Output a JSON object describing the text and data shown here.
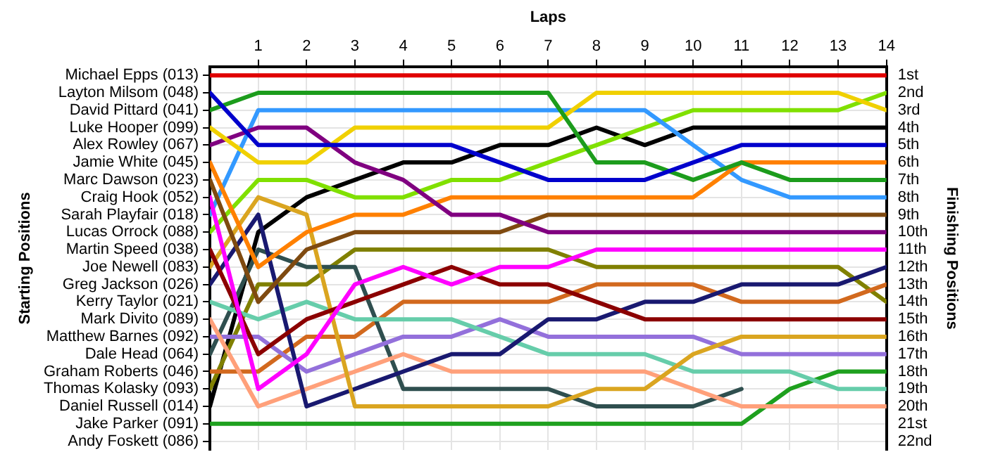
{
  "chart_data": {
    "type": "line",
    "xlabel": "Laps",
    "annotations": [
      "Starting Positions"
    ],
    "y2label": "Finishing Positions",
    "x": [
      0,
      1,
      2,
      3,
      4,
      5,
      6,
      7,
      8,
      9,
      10,
      11,
      12,
      13,
      14
    ],
    "xlim": [
      0,
      14
    ],
    "xticks": [
      1,
      2,
      3,
      4,
      5,
      6,
      7,
      8,
      9,
      10,
      11,
      12,
      13,
      14
    ],
    "y_categories": [
      "Michael Epps (013)",
      "Layton Milsom (048)",
      "David Pittard (041)",
      "Luke Hooper (099)",
      "Alex Rowley (067)",
      "Jamie White (045)",
      "Marc Dawson (023)",
      "Craig Hook (052)",
      "Sarah Playfair (018)",
      "Lucas Orrock (088)",
      "Martin Speed (038)",
      "Joe Newell (083)",
      "Greg Jackson (026)",
      "Kerry Taylor (021)",
      "Mark Divito (089)",
      "Matthew Barnes (092)",
      "Dale Head (064)",
      "Graham Roberts (046)",
      "Thomas Kolasky (093)",
      "Daniel Russell (014)",
      "Jake Parker (091)",
      "Andy Foskett (086)"
    ],
    "y2lim": [
      22.5,
      0.5
    ],
    "y2ticks": [
      {
        "value": 1,
        "label": "1st"
      },
      {
        "value": 2,
        "label": "2nd"
      },
      {
        "value": 3,
        "label": "3rd"
      },
      {
        "value": 4,
        "label": "4th"
      },
      {
        "value": 5,
        "label": "5th"
      },
      {
        "value": 6,
        "label": "6th"
      },
      {
        "value": 7,
        "label": "7th"
      },
      {
        "value": 8,
        "label": "8th"
      },
      {
        "value": 9,
        "label": "9th"
      },
      {
        "value": 10,
        "label": "10th"
      },
      {
        "value": 11,
        "label": "11th"
      },
      {
        "value": 12,
        "label": "12th"
      },
      {
        "value": 13,
        "label": "13th"
      },
      {
        "value": 14,
        "label": "14th"
      },
      {
        "value": 15,
        "label": "15th"
      },
      {
        "value": 16,
        "label": "16th"
      },
      {
        "value": 17,
        "label": "17th"
      },
      {
        "value": 18,
        "label": "18th"
      },
      {
        "value": 19,
        "label": "19th"
      },
      {
        "value": 20,
        "label": "20th"
      },
      {
        "value": 21,
        "label": "21st"
      },
      {
        "value": 22,
        "label": "22nd"
      }
    ],
    "grid": true,
    "legend": false,
    "marker": "none",
    "line_style": "solid",
    "series": [
      {
        "axis": "y2",
        "color": "#e00000",
        "values": [
          1,
          1,
          1,
          1,
          1,
          1,
          1,
          1,
          1,
          1,
          1,
          1,
          1,
          1,
          1
        ]
      },
      {
        "axis": "y2",
        "color": "#0000cc",
        "values": [
          2,
          5,
          5,
          5,
          5,
          5,
          6,
          7,
          7,
          7,
          6,
          5,
          5,
          5,
          5
        ]
      },
      {
        "axis": "y2",
        "color": "#1c9c1c",
        "values": [
          3,
          2,
          2,
          2,
          2,
          2,
          2,
          2,
          6,
          6,
          7,
          6,
          7,
          7,
          7
        ]
      },
      {
        "axis": "y2",
        "color": "#f0d000",
        "values": [
          4,
          6,
          6,
          4,
          4,
          4,
          4,
          4,
          2,
          2,
          2,
          2,
          2,
          2,
          3
        ]
      },
      {
        "axis": "y2",
        "color": "#800080",
        "values": [
          5,
          4,
          4,
          6,
          7,
          9,
          9,
          10,
          10,
          10,
          10,
          10,
          10,
          10,
          10
        ]
      },
      {
        "axis": "y2",
        "color": "#ff8000",
        "values": [
          6,
          12,
          10,
          9,
          9,
          8,
          8,
          8,
          8,
          8,
          8,
          6,
          6,
          6,
          6
        ]
      },
      {
        "axis": "y2",
        "color": "#7f4a10",
        "values": [
          7,
          14,
          11,
          10,
          10,
          10,
          10,
          9,
          9,
          9,
          9,
          9,
          9,
          9,
          9
        ]
      },
      {
        "axis": "y2",
        "color": "#ff00ff",
        "values": [
          8,
          19,
          17,
          13,
          12,
          13,
          12,
          12,
          11,
          11,
          11,
          11,
          11,
          11,
          11
        ]
      },
      {
        "axis": "y2",
        "color": "#3399ff",
        "values": [
          9,
          3,
          3,
          3,
          3,
          3,
          3,
          3,
          3,
          3,
          5,
          7,
          8,
          8,
          8
        ]
      },
      {
        "axis": "y2",
        "color": "#80e000",
        "values": [
          10,
          7,
          7,
          8,
          8,
          7,
          7,
          6,
          5,
          4,
          3,
          3,
          3,
          3,
          2
        ]
      },
      {
        "axis": "y2",
        "color": "#8b0000",
        "values": [
          11,
          17,
          15,
          14,
          13,
          12,
          13,
          13,
          14,
          15,
          15,
          15,
          15,
          15,
          15
        ]
      },
      {
        "axis": "y2",
        "color": "#daa520",
        "values": [
          12,
          8,
          9,
          20,
          20,
          20,
          20,
          20,
          19,
          19,
          17,
          16,
          16,
          16,
          16
        ]
      },
      {
        "axis": "y2",
        "color": "#191970",
        "values": [
          13,
          9,
          20,
          19,
          18,
          17,
          17,
          15,
          15,
          14,
          14,
          13,
          13,
          13,
          12
        ]
      },
      {
        "axis": "y2",
        "color": "#66cdaa",
        "values": [
          14,
          15,
          14,
          15,
          15,
          15,
          16,
          17,
          17,
          17,
          18,
          18,
          18,
          19,
          19
        ]
      },
      {
        "axis": "y2",
        "color": "#ffa07a",
        "values": [
          15,
          20,
          19,
          18,
          17,
          18,
          18,
          18,
          18,
          18,
          19,
          20,
          20,
          20,
          20
        ]
      },
      {
        "axis": "y2",
        "color": "#9370db",
        "values": [
          16,
          16,
          18,
          17,
          16,
          16,
          15,
          16,
          16,
          16,
          16,
          17,
          17,
          17,
          17
        ]
      },
      {
        "axis": "y2",
        "color": "#2f4f4f",
        "values": [
          17,
          11,
          12,
          12,
          19,
          19,
          19,
          19,
          20,
          20,
          20,
          19,
          null,
          null,
          null
        ]
      },
      {
        "axis": "y2",
        "color": "#d2691e",
        "values": [
          18,
          18,
          16,
          16,
          14,
          14,
          14,
          14,
          13,
          13,
          13,
          14,
          14,
          14,
          13
        ]
      },
      {
        "axis": "y2",
        "color": "#808000",
        "values": [
          19,
          13,
          13,
          11,
          11,
          11,
          11,
          11,
          12,
          12,
          12,
          12,
          12,
          12,
          14
        ]
      },
      {
        "axis": "y2",
        "color": "#000000",
        "values": [
          20,
          10,
          8,
          7,
          6,
          6,
          5,
          5,
          4,
          5,
          4,
          4,
          4,
          4,
          4
        ]
      },
      {
        "axis": "y2",
        "color": "#1ea01e",
        "values": [
          21,
          21,
          21,
          21,
          21,
          21,
          21,
          21,
          21,
          21,
          21,
          21,
          19,
          18,
          18
        ]
      }
    ]
  }
}
